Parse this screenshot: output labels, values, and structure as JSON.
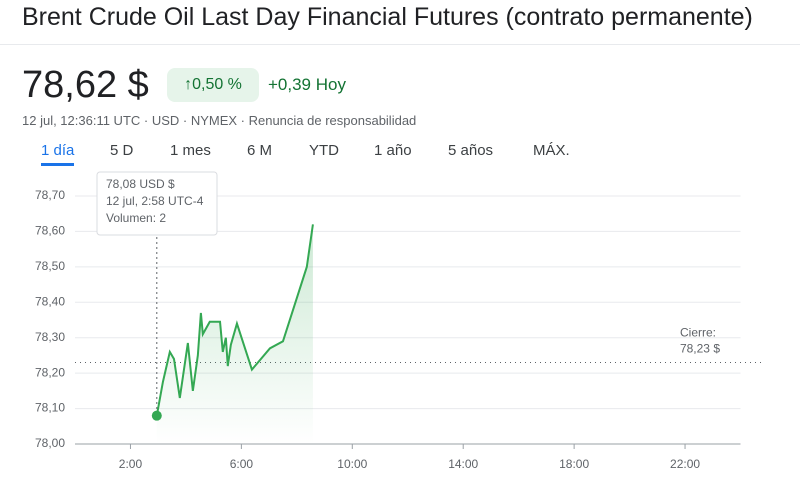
{
  "header": {
    "title": "Brent Crude Oil Last Day Financial Futures (contrato permanente)",
    "price": "78,62 $",
    "change_pct": "0,50 %",
    "change_abs": "+0,39 Hoy",
    "meta": "12 jul, 12:36:11 UTC · USD · NYMEX · Renuncia de responsabilidad"
  },
  "tabs": {
    "items": [
      "1 día",
      "5 D",
      "1 mes",
      "6 M",
      "YTD",
      "1 año",
      "5 años",
      "MÁX."
    ],
    "active": 0
  },
  "chart_data": {
    "type": "line",
    "x": [
      2.95,
      3.17,
      3.42,
      3.57,
      3.78,
      4.07,
      4.25,
      4.43,
      4.54,
      4.61,
      4.86,
      5.23,
      5.33,
      5.44,
      5.51,
      5.62,
      5.84,
      6.38,
      7.03,
      7.5,
      8.36,
      8.58
    ],
    "series": [
      {
        "name": "Brent",
        "color": "#34a853",
        "values": [
          78.08,
          78.175,
          78.26,
          78.24,
          78.13,
          78.285,
          78.15,
          78.25,
          78.37,
          78.31,
          78.345,
          78.345,
          78.26,
          78.3,
          78.22,
          78.28,
          78.34,
          78.21,
          78.27,
          78.29,
          78.5,
          78.62
        ]
      }
    ],
    "xlim": [
      0,
      24
    ],
    "xticks": [
      {
        "value": 2,
        "label": "2:00"
      },
      {
        "value": 6,
        "label": "6:00"
      },
      {
        "value": 10,
        "label": "10:00"
      },
      {
        "value": 14,
        "label": "14:00"
      },
      {
        "value": 18,
        "label": "18:00"
      },
      {
        "value": 22,
        "label": "22:00"
      }
    ],
    "ylim": [
      78.0,
      78.7
    ],
    "yticks": [
      {
        "value": 78.0,
        "label": "78,00"
      },
      {
        "value": 78.1,
        "label": "78,10"
      },
      {
        "value": 78.2,
        "label": "78,20"
      },
      {
        "value": 78.3,
        "label": "78,30"
      },
      {
        "value": 78.4,
        "label": "78,40"
      },
      {
        "value": 78.5,
        "label": "78,50"
      },
      {
        "value": 78.6,
        "label": "78,60"
      },
      {
        "value": 78.7,
        "label": "78,70"
      }
    ],
    "grid": true,
    "previous_close": {
      "label": "Cierre:",
      "value": 78.23,
      "value_label": "78,23 $"
    },
    "tooltip": {
      "price": "78,08 USD $",
      "time": "12 jul, 2:58 UTC-4",
      "volume": "Volumen: 2"
    }
  }
}
